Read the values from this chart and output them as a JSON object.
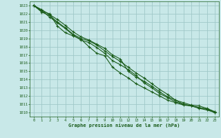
{
  "bg_color": "#c8e8e8",
  "grid_color": "#a0c8c8",
  "line_color": "#1a5c1a",
  "marker_color": "#1a5c1a",
  "xlabel": "Graphe pression niveau de la mer (hPa)",
  "xlabel_color": "#1a5c1a",
  "ylim": [
    1009.5,
    1023.5
  ],
  "xlim": [
    -0.5,
    23.5
  ],
  "yticks": [
    1010,
    1011,
    1012,
    1013,
    1014,
    1015,
    1016,
    1017,
    1018,
    1019,
    1020,
    1021,
    1022,
    1023
  ],
  "xticks": [
    0,
    1,
    2,
    3,
    4,
    5,
    6,
    7,
    8,
    9,
    10,
    11,
    12,
    13,
    14,
    15,
    16,
    17,
    18,
    19,
    20,
    21,
    22,
    23
  ],
  "series": [
    [
      1023.0,
      1022.2,
      1021.8,
      1021.0,
      1020.3,
      1019.5,
      1019.0,
      1018.7,
      1018.2,
      1017.5,
      1016.8,
      1016.2,
      1015.5,
      1014.8,
      1014.2,
      1013.5,
      1012.8,
      1012.2,
      1011.5,
      1011.0,
      1010.8,
      1010.5,
      1010.3,
      1010.0
    ],
    [
      1023.0,
      1022.5,
      1021.9,
      1021.3,
      1020.6,
      1019.8,
      1019.2,
      1018.8,
      1018.3,
      1017.8,
      1017.0,
      1016.5,
      1015.0,
      1014.3,
      1013.8,
      1013.2,
      1012.5,
      1011.9,
      1011.5,
      1011.2,
      1010.9,
      1010.8,
      1010.5,
      1010.1
    ],
    [
      1023.0,
      1022.3,
      1022.0,
      1020.5,
      1019.7,
      1019.3,
      1018.9,
      1018.0,
      1017.2,
      1016.9,
      1015.5,
      1014.8,
      1014.2,
      1013.5,
      1013.0,
      1012.5,
      1012.0,
      1011.5,
      1011.2,
      1010.9,
      1010.8,
      1010.6,
      1010.4,
      1010.0
    ],
    [
      1023.0,
      1022.4,
      1021.6,
      1020.9,
      1020.2,
      1019.4,
      1018.8,
      1018.5,
      1017.9,
      1017.2,
      1016.3,
      1015.8,
      1015.2,
      1014.5,
      1013.6,
      1013.0,
      1012.3,
      1011.8,
      1011.3,
      1011.0,
      1010.8,
      1010.6,
      1010.4,
      1010.05
    ]
  ]
}
